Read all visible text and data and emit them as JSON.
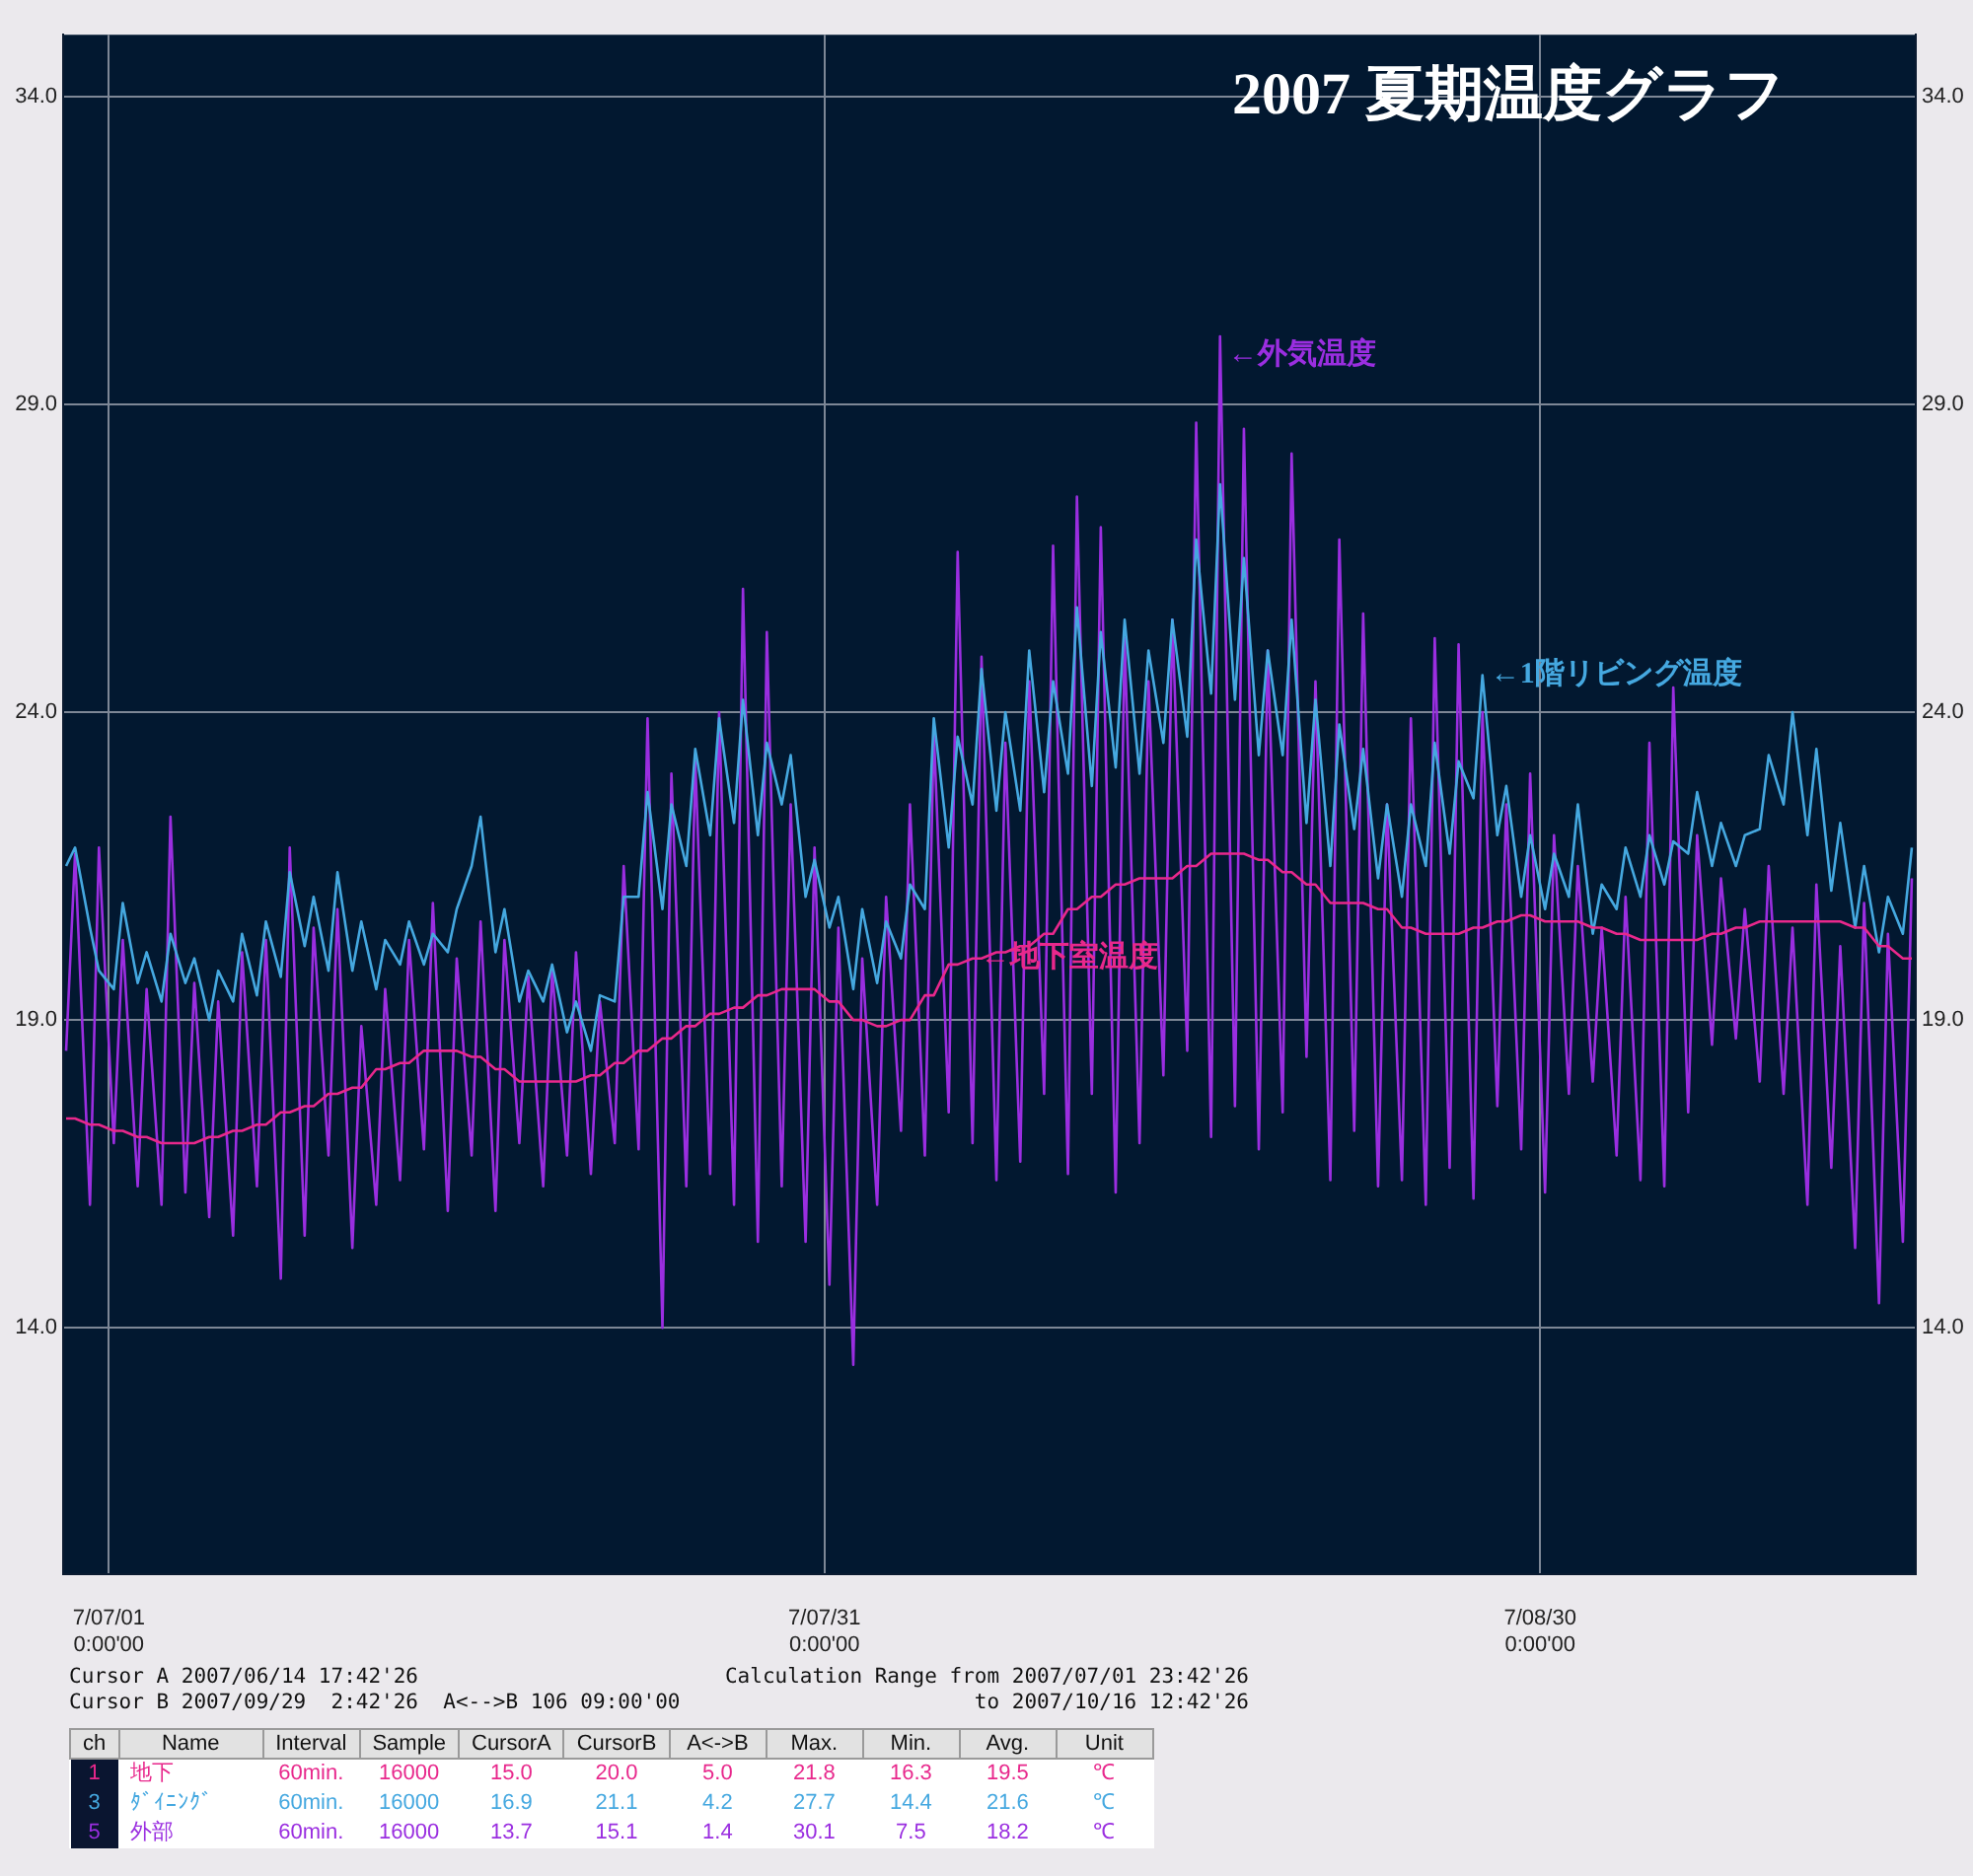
{
  "chart_data": [
    {
      "type": "line",
      "title": "2007 夏期温度グラフ",
      "x": [
        "2007-06-29T05:00",
        "2007-06-29T14:00",
        "2007-06-30T05:00",
        "2007-06-30T14:00",
        "2007-07-01T05:00",
        "2007-07-01T14:00",
        "2007-07-02T05:00",
        "2007-07-02T14:00",
        "2007-07-03T05:00",
        "2007-07-03T14:00",
        "2007-07-04T05:00",
        "2007-07-04T14:00",
        "2007-07-05T05:00",
        "2007-07-05T14:00",
        "2007-07-06T05:00",
        "2007-07-06T14:00",
        "2007-07-07T05:00",
        "2007-07-07T14:00",
        "2007-07-08T05:00",
        "2007-07-08T14:00",
        "2007-07-09T05:00",
        "2007-07-09T14:00",
        "2007-07-10T05:00",
        "2007-07-10T14:00",
        "2007-07-11T05:00",
        "2007-07-11T14:00",
        "2007-07-12T05:00",
        "2007-07-12T14:00",
        "2007-07-13T05:00",
        "2007-07-13T14:00",
        "2007-07-14T05:00",
        "2007-07-14T14:00",
        "2007-07-15T05:00",
        "2007-07-15T14:00",
        "2007-07-16T05:00",
        "2007-07-16T14:00",
        "2007-07-17T05:00",
        "2007-07-17T14:00",
        "2007-07-18T05:00",
        "2007-07-18T14:00",
        "2007-07-19T05:00",
        "2007-07-19T14:00",
        "2007-07-20T05:00",
        "2007-07-20T14:00",
        "2007-07-21T05:00",
        "2007-07-21T14:00",
        "2007-07-22T05:00",
        "2007-07-22T14:00",
        "2007-07-23T05:00",
        "2007-07-23T14:00",
        "2007-07-24T05:00",
        "2007-07-24T14:00",
        "2007-07-25T05:00",
        "2007-07-25T14:00",
        "2007-07-26T05:00",
        "2007-07-26T14:00",
        "2007-07-27T05:00",
        "2007-07-27T14:00",
        "2007-07-28T05:00",
        "2007-07-28T14:00",
        "2007-07-29T05:00",
        "2007-07-29T14:00",
        "2007-07-30T05:00",
        "2007-07-30T14:00",
        "2007-07-31T05:00",
        "2007-07-31T14:00",
        "2007-08-01T05:00",
        "2007-08-01T14:00",
        "2007-08-02T05:00",
        "2007-08-02T14:00",
        "2007-08-03T05:00",
        "2007-08-03T14:00",
        "2007-08-04T05:00",
        "2007-08-04T14:00",
        "2007-08-05T05:00",
        "2007-08-05T14:00",
        "2007-08-06T05:00",
        "2007-08-06T14:00",
        "2007-08-07T05:00",
        "2007-08-07T14:00",
        "2007-08-08T05:00",
        "2007-08-08T14:00",
        "2007-08-09T05:00",
        "2007-08-09T14:00",
        "2007-08-10T05:00",
        "2007-08-10T14:00",
        "2007-08-11T05:00",
        "2007-08-11T14:00",
        "2007-08-12T05:00",
        "2007-08-12T14:00",
        "2007-08-13T05:00",
        "2007-08-13T14:00",
        "2007-08-14T05:00",
        "2007-08-14T14:00",
        "2007-08-15T05:00",
        "2007-08-15T14:00",
        "2007-08-16T05:00",
        "2007-08-16T14:00",
        "2007-08-17T05:00",
        "2007-08-17T14:00",
        "2007-08-18T05:00",
        "2007-08-18T14:00",
        "2007-08-19T05:00",
        "2007-08-19T14:00",
        "2007-08-20T05:00",
        "2007-08-20T14:00",
        "2007-08-21T05:00",
        "2007-08-21T14:00",
        "2007-08-22T05:00",
        "2007-08-22T14:00",
        "2007-08-23T05:00",
        "2007-08-23T14:00",
        "2007-08-24T05:00",
        "2007-08-24T14:00",
        "2007-08-25T05:00",
        "2007-08-25T14:00",
        "2007-08-26T05:00",
        "2007-08-26T14:00",
        "2007-08-27T05:00",
        "2007-08-27T14:00",
        "2007-08-28T05:00",
        "2007-08-28T14:00",
        "2007-08-29T05:00",
        "2007-08-29T14:00",
        "2007-08-30T05:00",
        "2007-08-30T14:00",
        "2007-08-31T05:00",
        "2007-08-31T14:00",
        "2007-09-01T05:00",
        "2007-09-01T14:00",
        "2007-09-02T05:00",
        "2007-09-02T14:00",
        "2007-09-03T05:00",
        "2007-09-03T14:00",
        "2007-09-04T05:00",
        "2007-09-04T14:00",
        "2007-09-05T05:00",
        "2007-09-05T14:00",
        "2007-09-06T05:00",
        "2007-09-06T14:00",
        "2007-09-07T05:00",
        "2007-09-07T14:00",
        "2007-09-08T05:00",
        "2007-09-08T14:00",
        "2007-09-09T05:00",
        "2007-09-09T14:00",
        "2007-09-10T05:00",
        "2007-09-10T14:00",
        "2007-09-11T05:00",
        "2007-09-11T14:00",
        "2007-09-12T05:00",
        "2007-09-12T14:00",
        "2007-09-13T05:00",
        "2007-09-13T14:00",
        "2007-09-14T05:00",
        "2007-09-14T14:00"
      ],
      "series": [
        {
          "color": "#e8288c",
          "values": [
            17.4,
            17.4,
            17.3,
            17.3,
            17.2,
            17.2,
            17.1,
            17.1,
            17.0,
            17.0,
            17.0,
            17.0,
            17.1,
            17.1,
            17.2,
            17.2,
            17.3,
            17.3,
            17.5,
            17.5,
            17.6,
            17.6,
            17.8,
            17.8,
            17.9,
            17.9,
            18.2,
            18.2,
            18.3,
            18.3,
            18.5,
            18.5,
            18.5,
            18.5,
            18.4,
            18.4,
            18.2,
            18.2,
            18.0,
            18.0,
            18.0,
            18.0,
            18.0,
            18.0,
            18.1,
            18.1,
            18.3,
            18.3,
            18.5,
            18.5,
            18.7,
            18.7,
            18.9,
            18.9,
            19.1,
            19.1,
            19.2,
            19.2,
            19.4,
            19.4,
            19.5,
            19.5,
            19.5,
            19.5,
            19.3,
            19.3,
            19.0,
            19.0,
            18.9,
            18.9,
            19.0,
            19.0,
            19.4,
            19.4,
            19.9,
            19.9,
            20.0,
            20.0,
            20.1,
            20.1,
            20.2,
            20.2,
            20.4,
            20.4,
            20.8,
            20.8,
            21.0,
            21.0,
            21.2,
            21.2,
            21.3,
            21.3,
            21.3,
            21.3,
            21.5,
            21.5,
            21.7,
            21.7,
            21.7,
            21.7,
            21.6,
            21.6,
            21.4,
            21.4,
            21.2,
            21.2,
            20.9,
            20.9,
            20.9,
            20.9,
            20.8,
            20.8,
            20.5,
            20.5,
            20.4,
            20.4,
            20.4,
            20.4,
            20.5,
            20.5,
            20.6,
            20.6,
            20.7,
            20.7,
            20.6,
            20.6,
            20.6,
            20.6,
            20.5,
            20.5,
            20.4,
            20.4,
            20.3,
            20.3,
            20.3,
            20.3,
            20.3,
            20.3,
            20.4,
            20.4,
            20.5,
            20.5,
            20.6,
            20.6,
            20.6,
            20.6,
            20.6,
            20.6,
            20.6,
            20.6,
            20.5,
            20.5,
            20.2,
            20.2,
            20.0,
            20.0
          ]
        },
        {
          "color": "#45a8e0",
          "values": [
            21.5,
            21.8,
            20.5,
            19.8,
            19.5,
            20.9,
            19.6,
            20.1,
            19.3,
            20.4,
            19.6,
            20.0,
            19.0,
            19.8,
            19.3,
            20.4,
            19.4,
            20.6,
            19.7,
            21.4,
            20.2,
            21.0,
            19.8,
            21.4,
            19.8,
            20.6,
            19.5,
            20.3,
            19.9,
            20.6,
            19.9,
            20.4,
            20.1,
            20.8,
            21.5,
            22.3,
            20.1,
            20.8,
            19.3,
            19.8,
            19.3,
            19.9,
            18.8,
            19.3,
            18.5,
            19.4,
            19.3,
            21.0,
            21.0,
            22.7,
            20.8,
            22.5,
            21.5,
            23.4,
            22.0,
            23.9,
            22.2,
            24.2,
            22.0,
            23.5,
            22.5,
            23.3,
            21.0,
            21.6,
            20.5,
            21.0,
            19.5,
            20.8,
            19.6,
            20.6,
            20.0,
            21.2,
            20.8,
            23.9,
            21.8,
            23.6,
            22.5,
            24.7,
            22.4,
            24.0,
            22.4,
            25.0,
            22.7,
            24.5,
            23.0,
            25.7,
            22.8,
            25.3,
            23.1,
            25.5,
            23.0,
            25.0,
            23.5,
            25.5,
            23.6,
            26.8,
            24.3,
            27.7,
            24.2,
            26.5,
            23.3,
            25.0,
            23.3,
            25.5,
            22.2,
            24.2,
            21.5,
            23.8,
            22.1,
            23.4,
            21.3,
            22.5,
            21.0,
            22.5,
            21.5,
            23.5,
            21.7,
            23.2,
            22.6,
            24.6,
            22.0,
            22.8,
            21.0,
            22.0,
            20.8,
            21.7,
            21.0,
            22.5,
            20.4,
            21.2,
            20.8,
            21.8,
            21.0,
            22.0,
            21.2,
            21.9,
            21.7,
            22.7,
            21.5,
            22.2,
            21.5,
            22.0,
            22.1,
            23.3,
            22.5,
            24.0,
            22.0,
            23.4,
            21.1,
            22.2,
            20.5,
            21.5,
            20.1,
            21.0,
            20.4,
            21.8
          ]
        },
        {
          "color": "#9a2ee0",
          "values": [
            18.5,
            21.7,
            16.0,
            21.8,
            17.0,
            20.3,
            16.3,
            19.5,
            16.0,
            22.3,
            16.2,
            19.6,
            15.8,
            19.3,
            15.5,
            20.1,
            16.3,
            20.3,
            14.8,
            21.8,
            15.5,
            20.5,
            16.8,
            20.8,
            15.3,
            18.9,
            16.0,
            19.5,
            16.4,
            20.3,
            16.9,
            20.9,
            15.9,
            20.0,
            16.8,
            20.6,
            15.9,
            20.3,
            17.0,
            19.7,
            16.3,
            19.8,
            16.8,
            20.1,
            16.5,
            19.3,
            17.0,
            21.5,
            16.9,
            23.9,
            14.0,
            23.0,
            16.3,
            23.2,
            16.5,
            24.0,
            16.0,
            26.0,
            15.4,
            25.3,
            16.3,
            22.5,
            15.4,
            21.8,
            14.7,
            20.5,
            13.4,
            20.0,
            16.0,
            21.0,
            17.2,
            22.5,
            16.8,
            23.7,
            17.5,
            26.6,
            17.0,
            24.9,
            16.4,
            23.5,
            16.7,
            24.5,
            17.8,
            26.7,
            16.5,
            27.5,
            17.8,
            27.0,
            16.2,
            25.2,
            17.0,
            24.5,
            18.1,
            25.5,
            18.5,
            28.7,
            17.1,
            30.1,
            17.6,
            28.6,
            16.9,
            25.0,
            17.5,
            28.2,
            18.4,
            24.5,
            16.4,
            26.8,
            17.2,
            25.6,
            16.3,
            22.5,
            16.4,
            23.9,
            16.0,
            25.2,
            16.6,
            25.1,
            16.1,
            24.0,
            17.6,
            22.5,
            16.9,
            23.0,
            16.2,
            22.0,
            17.8,
            21.5,
            18.0,
            20.5,
            16.8,
            21.0,
            16.4,
            23.5,
            16.3,
            24.4,
            17.5,
            22.0,
            18.6,
            21.3,
            18.7,
            20.8,
            18.0,
            21.5,
            17.8,
            20.5,
            16.0,
            21.2,
            16.6,
            20.2,
            15.3,
            20.9,
            14.4,
            20.4,
            15.4,
            21.3
          ]
        }
      ],
      "annotations": [
        {
          "text": "←地下室温度",
          "x": "2007-08-06T05:00",
          "y": 20.0
        },
        {
          "text": "←1階リビング温度",
          "x": "2007-08-27T14:00",
          "y": 24.6
        },
        {
          "text": "←外気温度",
          "x": "2007-08-16T14:00",
          "y": 29.8
        }
      ],
      "xlim": [
        "2007-06-29T02:00",
        "2007-09-14T18:00"
      ],
      "xticks": [
        {
          "value": "2007-07-01T00:00",
          "label": "7/07/01\n0:00'00"
        },
        {
          "value": "2007-07-31T00:00",
          "label": "7/07/31\n0:00'00"
        },
        {
          "value": "2007-08-30T00:00",
          "label": "7/08/30\n0:00'00"
        }
      ],
      "ylim": [
        10,
        35
      ],
      "yticks": [
        {
          "value": 14,
          "label": "14.0"
        },
        {
          "value": 19,
          "label": "19.0"
        },
        {
          "value": 24,
          "label": "24.0"
        },
        {
          "value": 29,
          "label": "29.0"
        },
        {
          "value": 34,
          "label": "34.0"
        }
      ],
      "y2lim": [
        10,
        35
      ],
      "y2ticks": [
        {
          "value": 14,
          "label": "14.0"
        },
        {
          "value": 19,
          "label": "19.0"
        },
        {
          "value": 24,
          "label": "24.0"
        },
        {
          "value": 29,
          "label": "29.0"
        },
        {
          "value": 34,
          "label": "34.0"
        }
      ],
      "grid": true
    },
    {
      "type": "other",
      "annotations": [
        "Cursor A 2007/06/14 17:42'26",
        "Cursor B 2007/09/29  2:42'26  A<-->B 106 09:00'00",
        "Calculation Range from 2007/07/01 23:42'26",
        "to 2007/10/16 12:42'26",
        "ch\tName\tInterval\tSample\tCursorA\tCursorB\tA<->B\tMax.\tMin.\tAvg.\tUnit",
        "1\t地下\t60min.\t16000\t15.0\t20.0\t5.0\t21.8\t16.3\t19.5\t℃",
        "3\tﾀﾞｲﾆﾝｸﾞ\t60min.\t16000\t16.9\t21.1\t4.2\t27.7\t14.4\t21.6\t℃",
        "5\t外部\t60min.\t16000\t13.7\t15.1\t1.4\t30.1\t7.5\t18.2\t℃"
      ]
    }
  ]
}
